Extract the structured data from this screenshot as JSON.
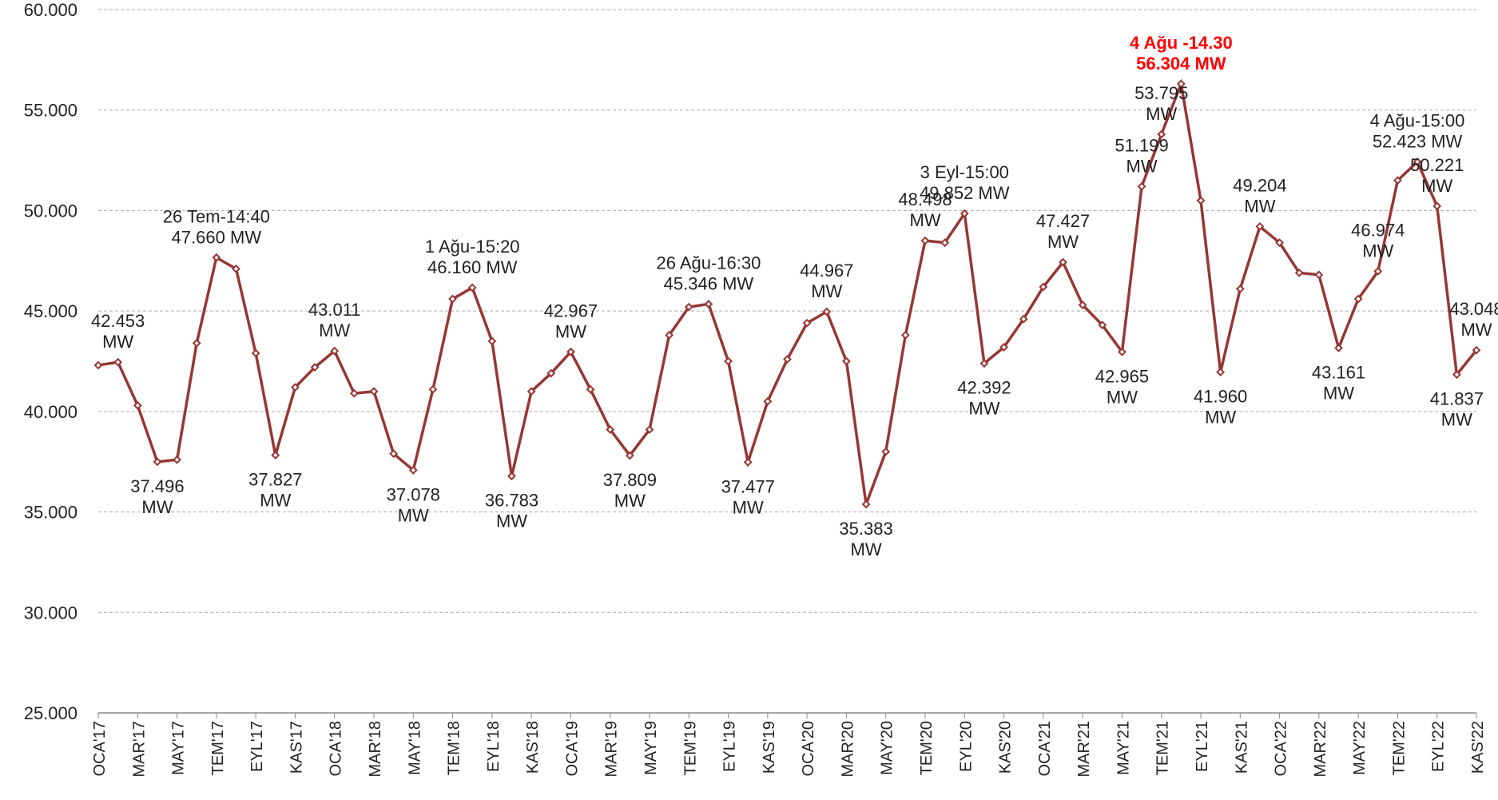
{
  "chart_data": {
    "type": "line",
    "categories": [
      "OCA'17",
      null,
      "MAR'17",
      null,
      "MAY'17",
      null,
      "TEM'17",
      null,
      "EYL'17",
      null,
      "KAS'17",
      null,
      "OCA'18",
      null,
      "MAR'18",
      null,
      "MAY'18",
      null,
      "TEM'18",
      null,
      "EYL'18",
      null,
      "KAS'18",
      null,
      "OCA'19",
      null,
      "MAR'19",
      null,
      "MAY'19",
      null,
      "TEM'19",
      null,
      "EYL'19",
      null,
      "KAS'19",
      null,
      "OCA'20",
      null,
      "MAR'20",
      null,
      "MAY'20",
      null,
      "TEM'20",
      null,
      "EYL'20",
      null,
      "KAS'20",
      null,
      "OCA'21",
      null,
      "MAR'21",
      null,
      "MAY'21",
      null,
      "TEM'21",
      null,
      "EYL'21",
      null,
      "KAS'21",
      null,
      "OCA'22",
      null,
      "MAR'22",
      null,
      "MAY'22",
      null,
      "TEM'22",
      null,
      "EYL'22",
      null,
      "KAS'22"
    ],
    "values": [
      42300,
      42453,
      40300,
      37496,
      37600,
      43400,
      47660,
      47100,
      42900,
      37827,
      41200,
      42200,
      43011,
      40900,
      41000,
      37900,
      37078,
      41100,
      45600,
      46160,
      43500,
      36783,
      41000,
      41900,
      42967,
      41100,
      39100,
      37809,
      39100,
      43800,
      45200,
      45346,
      42500,
      37477,
      40500,
      42600,
      44400,
      44967,
      42500,
      35383,
      38000,
      43800,
      48498,
      48400,
      49852,
      42392,
      43200,
      44600,
      46200,
      47427,
      45300,
      44300,
      42965,
      51199,
      53795,
      56304,
      50500,
      41960,
      46100,
      49204,
      48400,
      46900,
      46800,
      43161,
      45600,
      46974,
      51500,
      52423,
      50221,
      41837,
      43048
    ],
    "value_labels": [
      null,
      "42.453\nMW",
      null,
      "37.496\nMW",
      null,
      null,
      "26 Tem-14:40\n47.660 MW",
      null,
      null,
      "37.827\nMW",
      null,
      null,
      "43.011\nMW",
      null,
      null,
      null,
      "37.078\nMW",
      null,
      null,
      "1 Ağu-15:20\n46.160 MW",
      null,
      "36.783\nMW",
      null,
      null,
      "42.967\nMW",
      null,
      null,
      "37.809\nMW",
      null,
      null,
      null,
      "26 Ağu-16:30\n45.346 MW",
      null,
      "37.477\nMW",
      null,
      null,
      null,
      "44.967\nMW",
      null,
      "35.383\nMW",
      null,
      null,
      "48.498\nMW",
      null,
      "3 Eyl-15:00\n49.852 MW",
      "42.392\nMW",
      null,
      null,
      null,
      "47.427\nMW",
      null,
      null,
      "42.965\nMW",
      "51.199\nMW",
      "53.795\nMW",
      "4 Ağu -14.30\n56.304 MW",
      null,
      "41.960\nMW",
      null,
      "49.204\nMW",
      null,
      null,
      null,
      "43.161\nMW",
      null,
      "46.974\nMW",
      null,
      "4 Ağu-15:00\n52.423 MW",
      "50.221\nMW",
      "41.837\nMW",
      "43.048\nMW"
    ],
    "color": "#953735",
    "peak_label_color": "#ff0000",
    "ylim": [
      25000,
      60000
    ],
    "yticks": [
      {
        "value": 25000,
        "label": "25.000"
      },
      {
        "value": 30000,
        "label": "30.000"
      },
      {
        "value": 35000,
        "label": "35.000"
      },
      {
        "value": 40000,
        "label": "40.000"
      },
      {
        "value": 45000,
        "label": "45.000"
      },
      {
        "value": 50000,
        "label": "50.000"
      },
      {
        "value": 55000,
        "label": "55.000"
      },
      {
        "value": 60000,
        "label": "60.000"
      }
    ],
    "grid": true
  }
}
